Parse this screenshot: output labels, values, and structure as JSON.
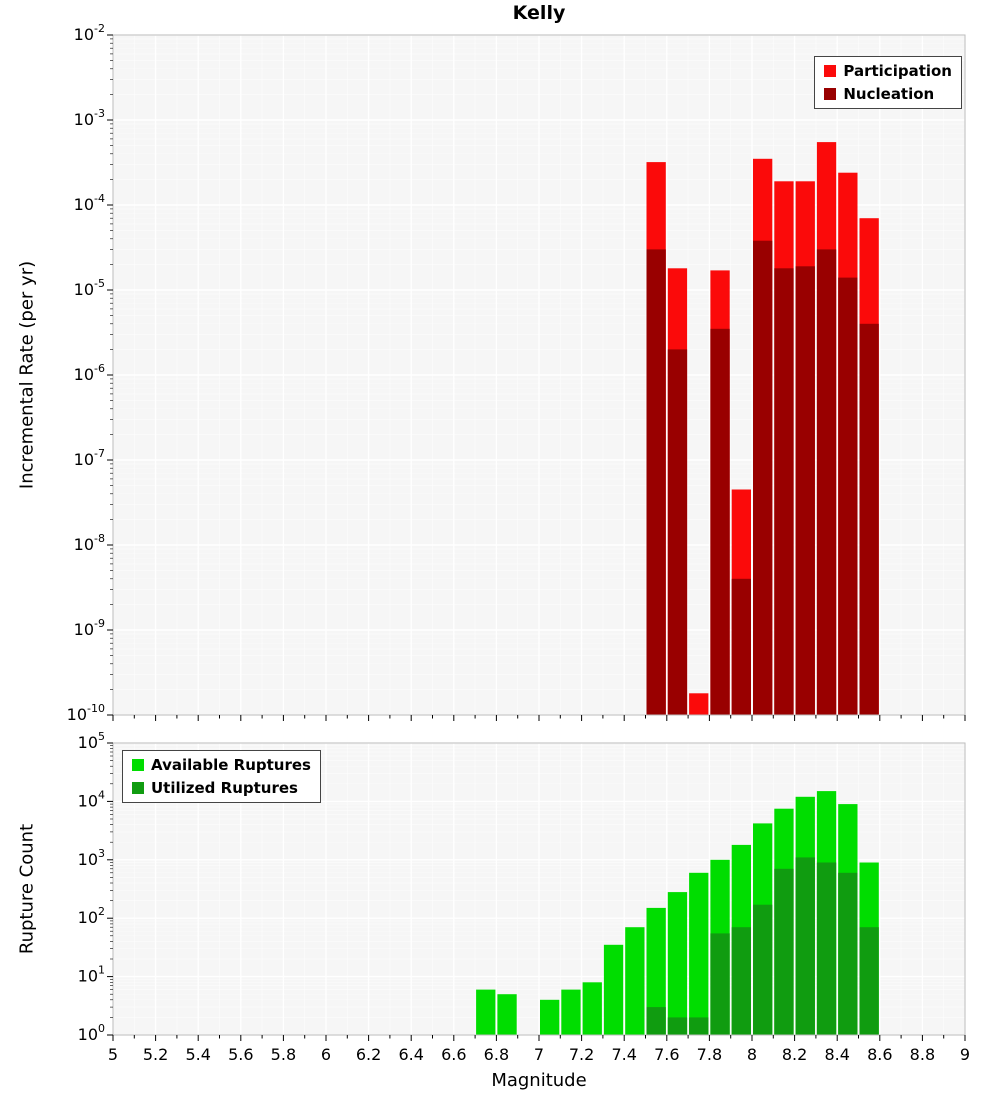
{
  "title": "Kelly",
  "chart_data": [
    {
      "type": "bar",
      "title": "Kelly",
      "ylabel": "Incremental Rate (per yr)",
      "xlim": [
        5,
        9
      ],
      "ylog_min": -10,
      "ylog_max": -2,
      "bin_width": 0.1,
      "grid": true,
      "legend_position": "top-right",
      "y_tick_exponents": [
        -2,
        -3,
        -4,
        -5,
        -6,
        -7,
        -8,
        -9,
        -10
      ],
      "categories": [
        7.55,
        7.65,
        7.75,
        7.85,
        7.95,
        8.05,
        8.15,
        8.25,
        8.35,
        8.45,
        8.55
      ],
      "series": [
        {
          "name": "Participation",
          "color": "#fb0a0a",
          "values": [
            0.00032,
            1.8e-05,
            1.8e-10,
            1.7e-05,
            4.5e-08,
            0.00035,
            0.00019,
            0.00019,
            0.00055,
            0.00024,
            7e-05
          ]
        },
        {
          "name": "Nucleation",
          "color": "#990000",
          "values": [
            3e-05,
            2e-06,
            null,
            3.5e-06,
            4e-09,
            3.8e-05,
            1.8e-05,
            1.9e-05,
            3e-05,
            1.4e-05,
            4e-06
          ]
        }
      ]
    },
    {
      "type": "bar",
      "ylabel": "Rupture Count",
      "xlabel": "Magnitude",
      "xlim": [
        5,
        9
      ],
      "ylog_min": 0,
      "ylog_max": 5,
      "bin_width": 0.1,
      "grid": true,
      "legend_position": "top-left",
      "y_tick_exponents": [
        5,
        4,
        3,
        2,
        1,
        0
      ],
      "x_ticks": [
        5,
        5.2,
        5.4,
        5.6,
        5.8,
        6,
        6.2,
        6.4,
        6.6,
        6.8,
        7,
        7.2,
        7.4,
        7.6,
        7.8,
        8,
        8.2,
        8.4,
        8.6,
        8.8,
        9
      ],
      "categories": [
        6.75,
        6.85,
        7.05,
        7.15,
        7.25,
        7.35,
        7.45,
        7.55,
        7.65,
        7.75,
        7.85,
        7.95,
        8.05,
        8.15,
        8.25,
        8.35,
        8.45,
        8.55
      ],
      "series": [
        {
          "name": "Available Ruptures",
          "color": "#00dd00",
          "values": [
            6,
            5,
            4,
            6,
            8,
            35,
            70,
            150,
            280,
            600,
            1000,
            1800,
            4200,
            7500,
            12000,
            15000,
            9000,
            900
          ]
        },
        {
          "name": "Utilized Ruptures",
          "color": "#109c10",
          "values": [
            null,
            null,
            null,
            null,
            null,
            null,
            null,
            3,
            2,
            2,
            55,
            70,
            170,
            700,
            1100,
            900,
            600,
            70
          ]
        }
      ]
    }
  ]
}
